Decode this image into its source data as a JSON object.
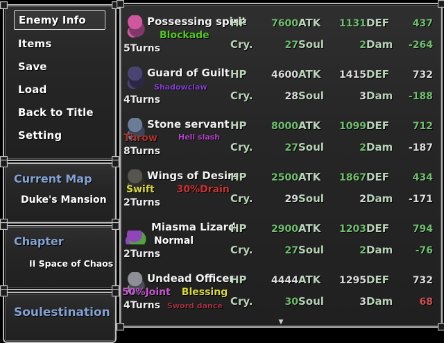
{
  "menu": {
    "items": [
      {
        "label": "Enemy Info",
        "selected": true
      },
      {
        "label": "Items",
        "selected": false
      },
      {
        "label": "Save",
        "selected": false
      },
      {
        "label": "Load",
        "selected": false
      },
      {
        "label": "Back to Title",
        "selected": false
      },
      {
        "label": "Setting",
        "selected": false
      }
    ]
  },
  "panels": {
    "current_map": {
      "title": "Current Map",
      "value": "Duke's Mansion"
    },
    "chapter": {
      "title": "Chapter",
      "value": "II Space of Chaos"
    },
    "footer": {
      "title": "Soulestination"
    }
  },
  "colors": {
    "title_blue": "#84a2d4",
    "stat_label_green": "#b9d2b9",
    "value_green": "#6fbf6f",
    "value_white": "#dcdcdc",
    "value_red": "#cf4f4f"
  },
  "enemies": [
    {
      "name": "Possessing spirit",
      "turns": "5Turns",
      "sprite": [
        "#c85a9a",
        "#7a3a66"
      ],
      "skills": [
        {
          "label": "Blockade",
          "color": "#54c81e",
          "small": false
        }
      ],
      "skills2": [],
      "stats": [
        {
          "label": "HP",
          "value": "7600",
          "c": "green"
        },
        {
          "label": "ATK",
          "value": "1131",
          "c": "green"
        },
        {
          "label": "DEF",
          "value": "437",
          "c": "green"
        },
        {
          "label": "Cry.",
          "value": "27",
          "c": "green"
        },
        {
          "label": "Soul",
          "value": "2",
          "c": "green"
        },
        {
          "label": "Dam",
          "value": "-264",
          "c": "green"
        }
      ]
    },
    {
      "name": "Guard of Guilt",
      "turns": "4Turns",
      "sprite": [
        "#4a4470",
        "#2c2842"
      ],
      "skills": [
        {
          "label": "Shadowclaw",
          "color": "#8040c8",
          "small": true
        }
      ],
      "skills2": [],
      "stats": [
        {
          "label": "HP",
          "value": "4600",
          "c": "white"
        },
        {
          "label": "ATK",
          "value": "1415",
          "c": "white"
        },
        {
          "label": "DEF",
          "value": "732",
          "c": "white"
        },
        {
          "label": "Cry.",
          "value": "28",
          "c": "white"
        },
        {
          "label": "Soul",
          "value": "3",
          "c": "white"
        },
        {
          "label": "Dam",
          "value": "-188",
          "c": "green"
        }
      ]
    },
    {
      "name": "Stone servant",
      "turns": "8Turns",
      "sprite": [
        "#6c7c94",
        "#3c4456"
      ],
      "skills": [
        {
          "label": "Throw",
          "color": "#a8342c",
          "small": false
        },
        {
          "label": "Hell slash",
          "color": "#b044c4",
          "small": true
        }
      ],
      "skills2": [],
      "stats": [
        {
          "label": "HP",
          "value": "8000",
          "c": "green"
        },
        {
          "label": "ATK",
          "value": "1099",
          "c": "green"
        },
        {
          "label": "DEF",
          "value": "712",
          "c": "green"
        },
        {
          "label": "Cry.",
          "value": "27",
          "c": "green"
        },
        {
          "label": "Soul",
          "value": "2",
          "c": "green"
        },
        {
          "label": "Dam",
          "value": "-187",
          "c": "white"
        }
      ]
    },
    {
      "name": "Wings of Desire",
      "turns": "2Turns",
      "sprite": [
        "#565650",
        "#2e2e2c"
      ],
      "skills": [
        {
          "label": "Swift",
          "color": "#d8d83a",
          "small": false
        },
        {
          "label": "30%Drain",
          "color": "#c83232",
          "small": false
        }
      ],
      "skills2": [],
      "stats": [
        {
          "label": "HP",
          "value": "2500",
          "c": "green"
        },
        {
          "label": "ATK",
          "value": "1867",
          "c": "green"
        },
        {
          "label": "DEF",
          "value": "434",
          "c": "green"
        },
        {
          "label": "Cry.",
          "value": "29",
          "c": "white"
        },
        {
          "label": "Soul",
          "value": "2",
          "c": "white"
        },
        {
          "label": "Dam",
          "value": "-171",
          "c": "white"
        }
      ]
    },
    {
      "name": "Miasma Lizard",
      "turns": "2Turns",
      "sprite": [
        "#8a48b0",
        "#58a048"
      ],
      "skills": [
        {
          "label": "Normal",
          "color": "#ffffff",
          "small": false
        }
      ],
      "skills2": [],
      "stats": [
        {
          "label": "HP",
          "value": "2900",
          "c": "green"
        },
        {
          "label": "ATK",
          "value": "1203",
          "c": "green"
        },
        {
          "label": "DEF",
          "value": "794",
          "c": "green"
        },
        {
          "label": "Cry.",
          "value": "27",
          "c": "green"
        },
        {
          "label": "Soul",
          "value": "2",
          "c": "green"
        },
        {
          "label": "Dam",
          "value": "-76",
          "c": "green"
        }
      ]
    },
    {
      "name": "Undead Officer",
      "turns": "4Turns",
      "sprite": [
        "#8e8e96",
        "#4a4a54"
      ],
      "skills": [
        {
          "label": "50%Joint",
          "color": "#c653cf",
          "small": false
        },
        {
          "label": "Blessing",
          "color": "#d8d83a",
          "small": false
        }
      ],
      "skills2": [
        {
          "label": "Sword dance",
          "color": "#a03242",
          "small": true
        }
      ],
      "stats": [
        {
          "label": "HP",
          "value": "4444",
          "c": "white"
        },
        {
          "label": "ATK",
          "value": "1295",
          "c": "white"
        },
        {
          "label": "DEF",
          "value": "732",
          "c": "white"
        },
        {
          "label": "Cry.",
          "value": "30",
          "c": "green"
        },
        {
          "label": "Soul",
          "value": "3",
          "c": "white"
        },
        {
          "label": "Dam",
          "value": "68",
          "c": "red"
        }
      ]
    }
  ],
  "scroll_indicator": "▼"
}
